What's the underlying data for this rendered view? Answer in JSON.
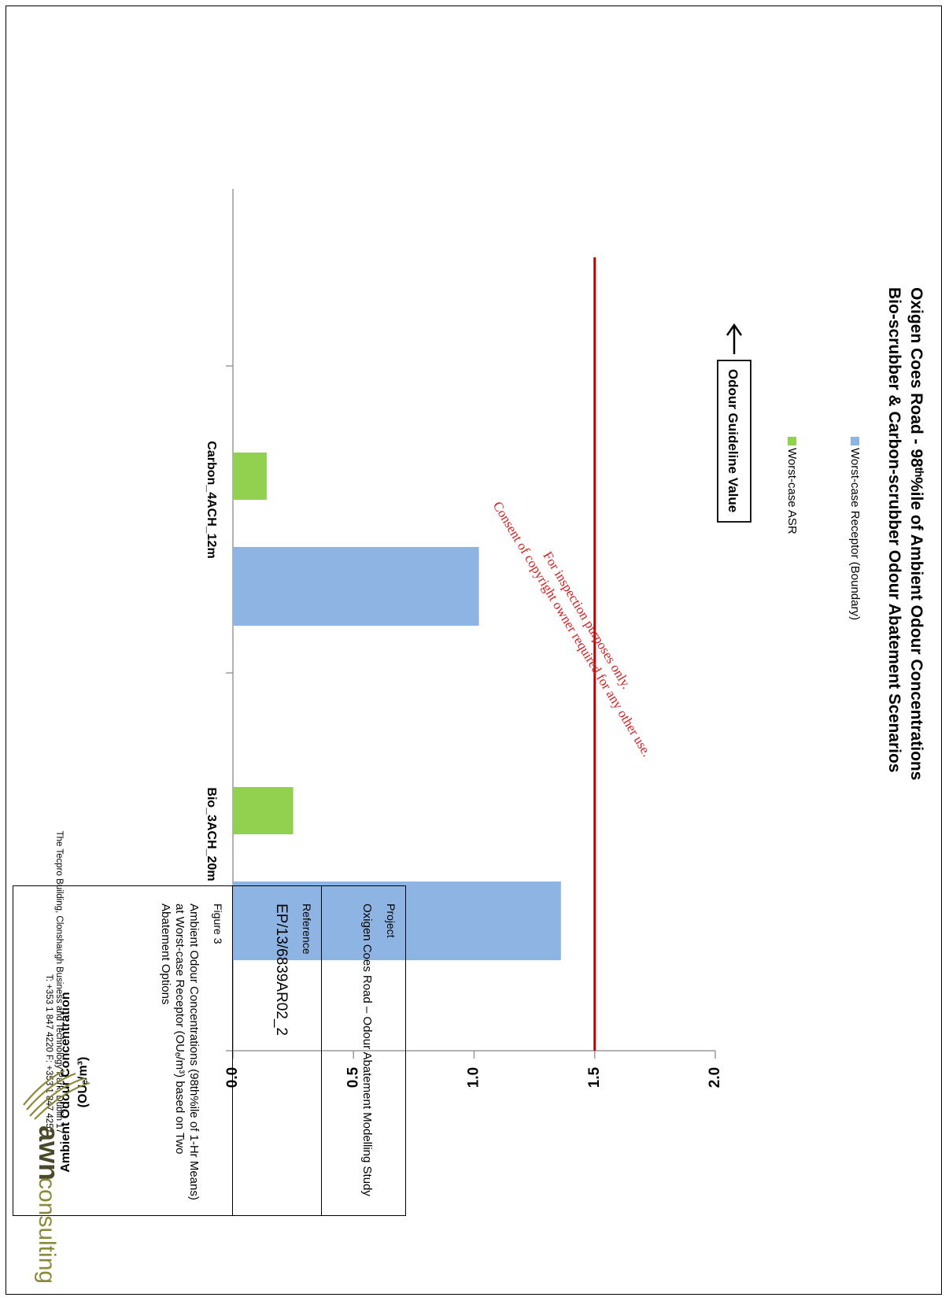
{
  "chart_data": {
    "type": "bar",
    "title": [
      "Oxigen Coes Road - 98ᵗʰ%ile of Ambient Odour Concentrations",
      "Bio-scrubber & Carbon-scrubber Odour Abatement Scenarios"
    ],
    "categories": [
      "Bio_3ACH_20m",
      "Carbon_4ACH_12m"
    ],
    "series": [
      {
        "name": "Worst-case Receptor (Boundary)",
        "values": [
          1.36,
          1.02
        ],
        "color": "#8eb4e3"
      },
      {
        "name": "Worst-case ASR",
        "values": [
          0.25,
          0.14
        ],
        "color": "#92d050"
      }
    ],
    "guideline": {
      "value": 1.5,
      "label": "Odour Guideline Value",
      "color": "#c00000"
    },
    "ylabel": "Ambient Odour Concentration",
    "yunit": "(OUₑ/m³)",
    "ylim": [
      0,
      2.0
    ],
    "yticks": [
      "0.0",
      "0.5",
      "1.0",
      "1.5",
      "2.0"
    ],
    "legend_position": "top",
    "grid": false
  },
  "watermark": {
    "line1": "For inspection purposes only.",
    "line2": "Consent of copyright owner required for any other use."
  },
  "info_box": {
    "project_head": "Project",
    "project_body": "Oxigen Coes Road – Odour Abatement Modelling Study",
    "reference_head": "Reference",
    "reference_body": "EP/13/6839AR02_2",
    "figure_head": "Figure 3",
    "figure_body": "Ambient Odour Concentrations (98th%ile of 1-Hr Means) at Worst-case Receptor (OUₑ/m³) based on Two Abatement Options"
  },
  "footer": {
    "address": "The Tecpro Building, Clonshaugh Business and Technology Park, Dublin 17",
    "phones": "T: +353 1 847 4220   F: +353 1 847 4257"
  },
  "logo": {
    "bold": "awn",
    "light": "consulting",
    "color": "#8a8a3a"
  }
}
